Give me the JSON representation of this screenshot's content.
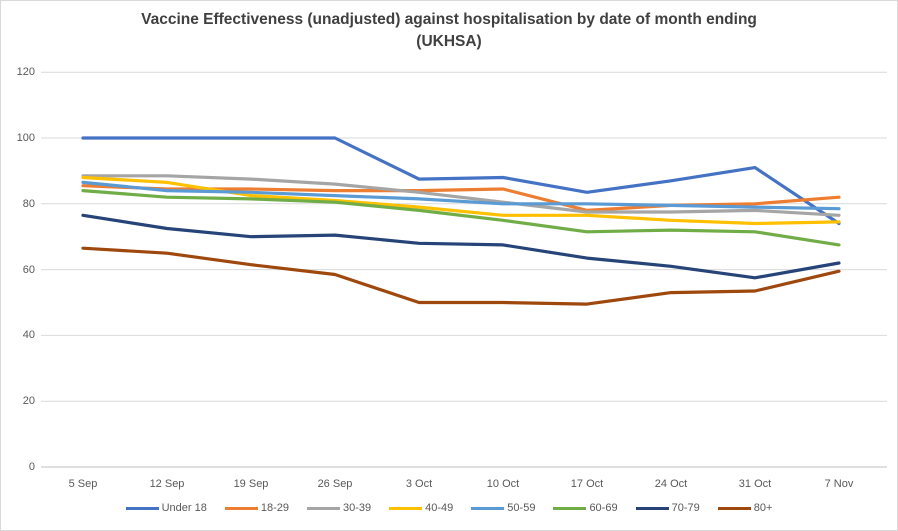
{
  "chart_data": {
    "type": "line",
    "title": "Vaccine Effectiveness (unadjusted) against hospitalisation by date of month ending (UKHSA)",
    "title_lines": [
      "Vaccine Effectiveness (unadjusted) against hospitalisation by date of month ending",
      "(UKHSA)"
    ],
    "xlabel": "",
    "ylabel": "",
    "categories": [
      "5 Sep",
      "12 Sep",
      "19 Sep",
      "26 Sep",
      "3 Oct",
      "10 Oct",
      "17 Oct",
      "24 Oct",
      "31 Oct",
      "7 Nov"
    ],
    "series": [
      {
        "name": "Under 18",
        "color": "#4472C4",
        "values": [
          100,
          100,
          100,
          100,
          87.5,
          88,
          83.5,
          87,
          91,
          74
        ]
      },
      {
        "name": "18-29",
        "color": "#ED7D31",
        "values": [
          85.5,
          84.5,
          84.5,
          84,
          84,
          84.5,
          78,
          79.5,
          80,
          82
        ]
      },
      {
        "name": "30-39",
        "color": "#A5A5A5",
        "values": [
          88.5,
          88.5,
          87.5,
          86,
          83.5,
          80.5,
          77.5,
          77.5,
          78,
          76.5
        ]
      },
      {
        "name": "40-49",
        "color": "#FFC000",
        "values": [
          88,
          86.5,
          82.5,
          81,
          79,
          76.5,
          76.5,
          75,
          74,
          74.5
        ]
      },
      {
        "name": "50-59",
        "color": "#5B9BD5",
        "values": [
          86.5,
          84,
          83.5,
          82.5,
          81.5,
          80,
          80,
          79.5,
          79,
          78.5
        ]
      },
      {
        "name": "60-69",
        "color": "#70AD47",
        "values": [
          84,
          82,
          81.5,
          80.5,
          78,
          75,
          71.5,
          72,
          71.5,
          67.5
        ]
      },
      {
        "name": "70-79",
        "color": "#264478",
        "values": [
          76.5,
          72.5,
          70,
          70.5,
          68,
          67.5,
          63.5,
          61,
          57.5,
          62
        ]
      },
      {
        "name": "80+",
        "color": "#9E480E",
        "values": [
          66.5,
          65,
          61.5,
          58.5,
          50,
          50,
          49.5,
          53,
          53.5,
          59.5
        ]
      }
    ],
    "ylim": [
      0,
      120
    ],
    "yticks": [
      0,
      20,
      40,
      60,
      80,
      100,
      120
    ],
    "grid": "horizontal",
    "legend_position": "bottom",
    "colors": {
      "background": "#FFFFFF",
      "border": "#D9D9D9",
      "gridline": "#D9D9D9",
      "axis_line": "#BFBFBF",
      "axis_text": "#595959",
      "title_text": "#404040"
    }
  }
}
